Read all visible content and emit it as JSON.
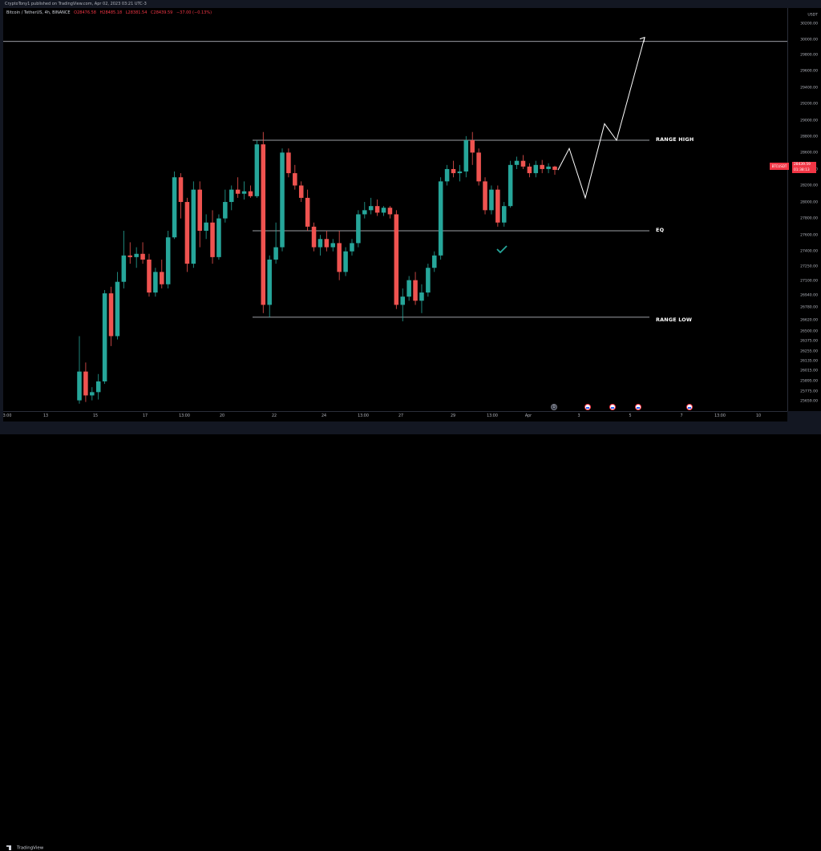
{
  "header": {
    "publisher": "CryptoTony1 published on TradingView.com, Apr 02, 2023 03:21 UTC-3"
  },
  "legend": {
    "symbol": "Bitcoin / TetherUS, 4h, BINANCE",
    "open": "O28476.58",
    "high": "H28485.18",
    "low": "L28381.54",
    "close": "C28439.59",
    "change": "−37.00 (−0.13%)"
  },
  "price_scale": {
    "currency": "USDT",
    "labels": [
      "30200.00",
      "30000.00",
      "29800.00",
      "29600.00",
      "29400.00",
      "29200.00",
      "29000.00",
      "28800.00",
      "28600.00",
      "28400.00",
      "28200.00",
      "28000.00",
      "27800.00",
      "27600.00",
      "27400.00",
      "27250.00",
      "27100.00",
      "26940.00",
      "26780.00",
      "26620.00",
      "26500.00",
      "26375.00",
      "26255.00",
      "26135.00",
      "26015.00",
      "25895.00",
      "25775.00",
      "25659.00"
    ],
    "current_price": "28439.59",
    "countdown": "01:38:13",
    "symbol_tag": "BTCUSDT"
  },
  "time_scale": {
    "labels": [
      "3:00",
      "13",
      "15",
      "17",
      "13:00",
      "20",
      "22",
      "24",
      "13:00",
      "27",
      "29",
      "13:00",
      "Apr",
      "3",
      "5",
      "7",
      "13:00",
      "10"
    ]
  },
  "annotations": {
    "range_high": "RANGE HIGH",
    "eq": "EQ",
    "range_low": "RANGE LOW"
  },
  "colors": {
    "bull": "#26a69a",
    "bear": "#ef5350",
    "background": "#000000",
    "accent": "#f23645"
  },
  "footer": {
    "brand": "TradingView"
  },
  "events": [
    {
      "type": "dividend",
      "glyph": "D"
    },
    {
      "type": "economic",
      "glyph": ""
    },
    {
      "type": "economic",
      "glyph": ""
    },
    {
      "type": "economic",
      "glyph": ""
    },
    {
      "type": "economic",
      "glyph": ""
    }
  ],
  "chart_data": {
    "type": "candlestick",
    "symbol": "Bitcoin / TetherUS",
    "interval": "4h",
    "candles": [
      {
        "o": 25640,
        "h": 26420,
        "l": 25600,
        "c": 25990
      },
      {
        "o": 25990,
        "h": 26100,
        "l": 25620,
        "c": 25700
      },
      {
        "o": 25700,
        "h": 25800,
        "l": 25640,
        "c": 25740
      },
      {
        "o": 25740,
        "h": 25960,
        "l": 25650,
        "c": 25870
      },
      {
        "o": 25870,
        "h": 26980,
        "l": 25840,
        "c": 26940
      },
      {
        "o": 26940,
        "h": 27020,
        "l": 26300,
        "c": 26420
      },
      {
        "o": 26420,
        "h": 27200,
        "l": 26380,
        "c": 27080
      },
      {
        "o": 27080,
        "h": 27700,
        "l": 27000,
        "c": 27400
      },
      {
        "o": 27400,
        "h": 27560,
        "l": 27300,
        "c": 27380
      },
      {
        "o": 27380,
        "h": 27500,
        "l": 27250,
        "c": 27420
      },
      {
        "o": 27420,
        "h": 27560,
        "l": 27300,
        "c": 27350
      },
      {
        "o": 27350,
        "h": 27420,
        "l": 26900,
        "c": 26950
      },
      {
        "o": 26950,
        "h": 27250,
        "l": 26900,
        "c": 27200
      },
      {
        "o": 27200,
        "h": 27350,
        "l": 27000,
        "c": 27050
      },
      {
        "o": 27050,
        "h": 27700,
        "l": 27000,
        "c": 27620
      },
      {
        "o": 27620,
        "h": 28420,
        "l": 27600,
        "c": 28350
      },
      {
        "o": 28350,
        "h": 28400,
        "l": 27850,
        "c": 28050
      },
      {
        "o": 28050,
        "h": 28100,
        "l": 27200,
        "c": 27300
      },
      {
        "o": 27300,
        "h": 28300,
        "l": 27250,
        "c": 28200
      },
      {
        "o": 28200,
        "h": 28300,
        "l": 27500,
        "c": 27700
      },
      {
        "o": 27700,
        "h": 27900,
        "l": 27600,
        "c": 27800
      },
      {
        "o": 27800,
        "h": 27950,
        "l": 27300,
        "c": 27380
      },
      {
        "o": 27380,
        "h": 27900,
        "l": 27350,
        "c": 27850
      },
      {
        "o": 27850,
        "h": 28200,
        "l": 27800,
        "c": 28050
      },
      {
        "o": 28050,
        "h": 28250,
        "l": 27950,
        "c": 28200
      },
      {
        "o": 28200,
        "h": 28350,
        "l": 28100,
        "c": 28150
      },
      {
        "o": 28150,
        "h": 28300,
        "l": 28080,
        "c": 28180
      },
      {
        "o": 28180,
        "h": 28250,
        "l": 28100,
        "c": 28120
      },
      {
        "o": 28120,
        "h": 28800,
        "l": 28100,
        "c": 28750
      },
      {
        "o": 28750,
        "h": 28900,
        "l": 26700,
        "c": 26800
      },
      {
        "o": 26800,
        "h": 27400,
        "l": 26650,
        "c": 27350
      },
      {
        "o": 27350,
        "h": 27800,
        "l": 27300,
        "c": 27500
      },
      {
        "o": 27500,
        "h": 28700,
        "l": 27450,
        "c": 28650
      },
      {
        "o": 28650,
        "h": 28700,
        "l": 28350,
        "c": 28400
      },
      {
        "o": 28400,
        "h": 28500,
        "l": 28200,
        "c": 28250
      },
      {
        "o": 28250,
        "h": 28300,
        "l": 28050,
        "c": 28100
      },
      {
        "o": 28100,
        "h": 28200,
        "l": 27700,
        "c": 27750
      },
      {
        "o": 27750,
        "h": 27800,
        "l": 27450,
        "c": 27500
      },
      {
        "o": 27500,
        "h": 27650,
        "l": 27400,
        "c": 27600
      },
      {
        "o": 27600,
        "h": 27700,
        "l": 27450,
        "c": 27500
      },
      {
        "o": 27500,
        "h": 27600,
        "l": 27450,
        "c": 27550
      },
      {
        "o": 27550,
        "h": 27700,
        "l": 27100,
        "c": 27200
      },
      {
        "o": 27200,
        "h": 27500,
        "l": 27150,
        "c": 27450
      },
      {
        "o": 27450,
        "h": 27600,
        "l": 27400,
        "c": 27550
      },
      {
        "o": 27550,
        "h": 27950,
        "l": 27500,
        "c": 27900
      },
      {
        "o": 27900,
        "h": 28050,
        "l": 27850,
        "c": 27950
      },
      {
        "o": 27950,
        "h": 28100,
        "l": 27900,
        "c": 28000
      },
      {
        "o": 28000,
        "h": 28080,
        "l": 27880,
        "c": 27920
      },
      {
        "o": 27920,
        "h": 28000,
        "l": 27880,
        "c": 27980
      },
      {
        "o": 27980,
        "h": 28000,
        "l": 27850,
        "c": 27900
      },
      {
        "o": 27900,
        "h": 27950,
        "l": 26750,
        "c": 26800
      },
      {
        "o": 26800,
        "h": 27000,
        "l": 26600,
        "c": 26900
      },
      {
        "o": 26900,
        "h": 27150,
        "l": 26850,
        "c": 27100
      },
      {
        "o": 27100,
        "h": 27200,
        "l": 26800,
        "c": 26850
      },
      {
        "o": 26850,
        "h": 27050,
        "l": 26700,
        "c": 26950
      },
      {
        "o": 26950,
        "h": 27300,
        "l": 26900,
        "c": 27250
      },
      {
        "o": 27250,
        "h": 27450,
        "l": 27200,
        "c": 27400
      },
      {
        "o": 27400,
        "h": 28350,
        "l": 27350,
        "c": 28300
      },
      {
        "o": 28300,
        "h": 28500,
        "l": 28250,
        "c": 28450
      },
      {
        "o": 28450,
        "h": 28550,
        "l": 28350,
        "c": 28400
      },
      {
        "o": 28400,
        "h": 28500,
        "l": 28300,
        "c": 28420
      },
      {
        "o": 28420,
        "h": 28850,
        "l": 28350,
        "c": 28800
      },
      {
        "o": 28800,
        "h": 28900,
        "l": 28500,
        "c": 28650
      },
      {
        "o": 28650,
        "h": 28700,
        "l": 28250,
        "c": 28300
      },
      {
        "o": 28300,
        "h": 28350,
        "l": 27900,
        "c": 27950
      },
      {
        "o": 27950,
        "h": 28250,
        "l": 27900,
        "c": 28200
      },
      {
        "o": 28200,
        "h": 28250,
        "l": 27750,
        "c": 27800
      },
      {
        "o": 27800,
        "h": 28050,
        "l": 27750,
        "c": 28000
      },
      {
        "o": 28000,
        "h": 28550,
        "l": 27980,
        "c": 28500
      },
      {
        "o": 28500,
        "h": 28600,
        "l": 28450,
        "c": 28550
      },
      {
        "o": 28550,
        "h": 28620,
        "l": 28450,
        "c": 28480
      },
      {
        "o": 28480,
        "h": 28520,
        "l": 28350,
        "c": 28400
      },
      {
        "o": 28400,
        "h": 28550,
        "l": 28350,
        "c": 28500
      },
      {
        "o": 28500,
        "h": 28560,
        "l": 28400,
        "c": 28450
      },
      {
        "o": 28450,
        "h": 28520,
        "l": 28400,
        "c": 28480
      },
      {
        "o": 28480,
        "h": 28490,
        "l": 28380,
        "c": 28440
      }
    ],
    "levels": [
      {
        "name": "RANGE HIGH",
        "price": 28800
      },
      {
        "name": "EQ",
        "price": 27700
      },
      {
        "name": "RANGE LOW",
        "price": 26650
      },
      {
        "name": "",
        "price": 30000
      }
    ],
    "projection_path": [
      28439,
      28700,
      28100,
      29000,
      28800,
      30050
    ],
    "price_range": [
      25659,
      30200
    ]
  }
}
